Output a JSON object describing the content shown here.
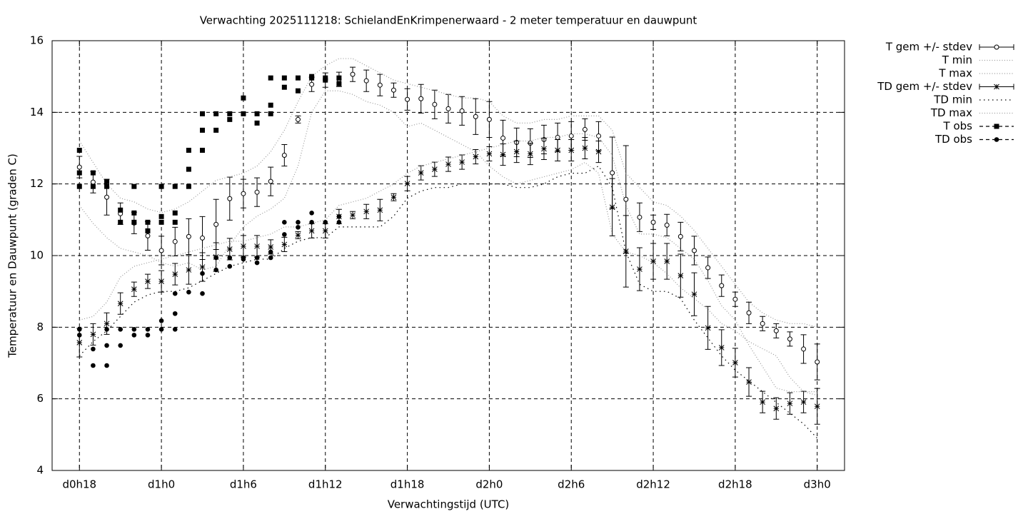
{
  "chart_data": {
    "type": "line",
    "title": "Verwachting 2025111218: SchielandEnKrimpenerwaard - 2 meter temperatuur en dauwpunt",
    "xlabel": "Verwachtingstijd (UTC)",
    "ylabel": "Temperatuur en Dauwpunt (graden C)",
    "xlim": [
      16,
      74
    ],
    "ylim": [
      4,
      16
    ],
    "xticks": [
      {
        "value": 18,
        "label": "d0h18"
      },
      {
        "value": 24,
        "label": "d1h0"
      },
      {
        "value": 30,
        "label": "d1h6"
      },
      {
        "value": 36,
        "label": "d1h12"
      },
      {
        "value": 42,
        "label": "d1h18"
      },
      {
        "value": 48,
        "label": "d2h0"
      },
      {
        "value": 54,
        "label": "d2h6"
      },
      {
        "value": 60,
        "label": "d2h12"
      },
      {
        "value": 66,
        "label": "d2h18"
      },
      {
        "value": 72,
        "label": "d3h0"
      }
    ],
    "yticks": [
      4,
      6,
      8,
      10,
      12,
      14,
      16
    ],
    "grid": true,
    "legend": "outside-right",
    "x": [
      18,
      19,
      20,
      21,
      22,
      23,
      24,
      25,
      26,
      27,
      28,
      29,
      30,
      31,
      32,
      33,
      34,
      35,
      36,
      37,
      38,
      39,
      40,
      41,
      42,
      43,
      44,
      45,
      46,
      47,
      48,
      49,
      50,
      51,
      52,
      53,
      54,
      55,
      56,
      57,
      58,
      59,
      60,
      61,
      62,
      63,
      64,
      65,
      66,
      67,
      68,
      69,
      70,
      71,
      72
    ],
    "series": [
      {
        "name": "T gem +/- stdev",
        "color": "#000000",
        "marker": "circle",
        "line": "none",
        "values": [
          12.47,
          12.05,
          11.63,
          11.17,
          10.91,
          10.55,
          10.14,
          10.39,
          10.53,
          10.49,
          10.87,
          11.59,
          11.73,
          11.77,
          12.07,
          12.8,
          13.8,
          14.78,
          14.9,
          14.92,
          15.06,
          14.88,
          14.76,
          14.62,
          14.36,
          14.38,
          14.22,
          14.1,
          14.04,
          13.88,
          13.8,
          13.28,
          13.16,
          13.14,
          13.24,
          13.3,
          13.34,
          13.52,
          13.34,
          12.31,
          11.57,
          11.07,
          10.93,
          10.85,
          10.53,
          10.14,
          9.66,
          9.16,
          8.78,
          8.4,
          8.1,
          7.9,
          7.67,
          7.39,
          7.03
        ],
        "errors": [
          0.3,
          0.3,
          0.5,
          0.3,
          0.3,
          0.4,
          0.4,
          0.4,
          0.5,
          0.6,
          0.7,
          0.6,
          0.4,
          0.4,
          0.4,
          0.3,
          0.1,
          0.2,
          0.2,
          0.2,
          0.2,
          0.3,
          0.3,
          0.2,
          0.3,
          0.4,
          0.4,
          0.4,
          0.4,
          0.5,
          0.5,
          0.5,
          0.4,
          0.4,
          0.4,
          0.4,
          0.4,
          0.3,
          0.4,
          1.0,
          1.5,
          0.4,
          0.2,
          0.3,
          0.4,
          0.4,
          0.3,
          0.3,
          0.2,
          0.3,
          0.2,
          0.2,
          0.2,
          0.4,
          0.5
        ]
      },
      {
        "name": "T min",
        "color": "#999999",
        "marker": "none",
        "line": "dotted",
        "values": [
          11.4,
          10.9,
          10.5,
          10.2,
          10.1,
          10.0,
          9.8,
          9.7,
          9.8,
          9.6,
          9.7,
          10.3,
          10.8,
          11.1,
          11.3,
          11.6,
          12.5,
          14.0,
          14.6,
          14.6,
          14.5,
          14.3,
          14.2,
          14.0,
          13.6,
          13.7,
          13.5,
          13.3,
          13.1,
          12.9,
          12.5,
          12.2,
          12.0,
          12.1,
          12.2,
          12.3,
          12.4,
          12.6,
          12.3,
          10.6,
          10.1,
          10.0,
          9.8,
          9.5,
          9.1,
          8.8,
          8.5,
          8.1,
          7.9,
          7.6,
          7.4,
          7.2,
          6.6,
          6.2,
          6.1
        ]
      },
      {
        "name": "T max",
        "color": "#999999",
        "marker": "none",
        "line": "dotted",
        "values": [
          13.2,
          12.6,
          12.0,
          11.6,
          11.5,
          11.3,
          11.2,
          11.3,
          11.5,
          11.8,
          12.1,
          12.2,
          12.3,
          12.5,
          12.9,
          13.5,
          14.3,
          15.0,
          15.3,
          15.5,
          15.5,
          15.3,
          15.1,
          14.9,
          14.8,
          14.7,
          14.6,
          14.5,
          14.4,
          14.4,
          14.3,
          13.9,
          13.7,
          13.7,
          13.8,
          13.8,
          13.9,
          13.9,
          13.9,
          13.5,
          12.3,
          11.9,
          11.5,
          11.4,
          11.1,
          10.7,
          10.2,
          9.7,
          9.2,
          8.7,
          8.4,
          8.2,
          8.1,
          8.1,
          8.0
        ]
      },
      {
        "name": "TD gem +/- stdev",
        "color": "#000000",
        "marker": "asterisk",
        "line": "none",
        "values": [
          7.57,
          7.8,
          8.1,
          8.66,
          9.06,
          9.28,
          9.28,
          9.48,
          9.6,
          9.68,
          9.96,
          10.18,
          10.26,
          10.26,
          10.24,
          10.31,
          10.57,
          10.69,
          10.69,
          11.09,
          11.13,
          11.23,
          11.27,
          11.63,
          12.01,
          12.31,
          12.41,
          12.55,
          12.61,
          12.76,
          12.84,
          12.82,
          12.9,
          12.84,
          12.98,
          12.94,
          12.94,
          13.0,
          12.9,
          11.35,
          10.12,
          9.62,
          9.84,
          9.84,
          9.44,
          8.92,
          7.98,
          7.43,
          7.01,
          6.47,
          5.91,
          5.73,
          5.87,
          5.91,
          5.79
        ],
        "errors": [
          0.4,
          0.3,
          0.3,
          0.3,
          0.2,
          0.2,
          0.3,
          0.3,
          0.4,
          0.4,
          0.4,
          0.3,
          0.3,
          0.3,
          0.2,
          0.2,
          0.1,
          0.2,
          0.2,
          0.2,
          0.1,
          0.2,
          0.3,
          0.1,
          0.2,
          0.2,
          0.2,
          0.2,
          0.2,
          0.2,
          0.2,
          0.3,
          0.3,
          0.3,
          0.3,
          0.3,
          0.3,
          0.3,
          0.3,
          0.8,
          1.0,
          0.6,
          0.5,
          0.5,
          0.6,
          0.6,
          0.6,
          0.5,
          0.4,
          0.4,
          0.3,
          0.3,
          0.3,
          0.3,
          0.5
        ]
      },
      {
        "name": "TD min",
        "color": "#000000",
        "marker": "none",
        "line": "sparse-dotted",
        "values": [
          7.2,
          7.6,
          7.9,
          8.3,
          8.7,
          8.9,
          9.0,
          9.0,
          9.1,
          9.3,
          9.5,
          9.7,
          9.8,
          9.9,
          9.9,
          10.2,
          10.4,
          10.5,
          10.5,
          10.8,
          10.8,
          10.8,
          10.8,
          11.1,
          11.6,
          11.8,
          11.9,
          11.9,
          12.0,
          12.0,
          12.0,
          12.0,
          11.9,
          11.9,
          12.0,
          12.2,
          12.3,
          12.3,
          12.5,
          11.9,
          10.1,
          9.2,
          9.0,
          9.0,
          8.8,
          8.2,
          7.7,
          7.2,
          6.8,
          6.5,
          6.2,
          5.9,
          5.6,
          5.3,
          4.9
        ]
      },
      {
        "name": "TD max",
        "color": "#999999",
        "marker": "none",
        "line": "dotted",
        "values": [
          8.2,
          8.3,
          8.7,
          9.4,
          9.7,
          9.8,
          9.9,
          10.0,
          10.1,
          10.2,
          10.3,
          10.4,
          10.4,
          10.5,
          10.6,
          10.8,
          10.8,
          10.9,
          11.0,
          11.4,
          11.5,
          11.6,
          11.8,
          12.0,
          12.3,
          12.5,
          12.6,
          12.7,
          12.8,
          12.9,
          13.0,
          13.1,
          13.2,
          13.2,
          13.3,
          13.3,
          13.4,
          13.4,
          13.3,
          12.8,
          11.4,
          10.6,
          10.6,
          10.5,
          10.2,
          9.9,
          9.3,
          8.6,
          8.2,
          7.5,
          6.9,
          6.3,
          6.2,
          6.2,
          6.2
        ]
      },
      {
        "name": "T obs",
        "color": "#000000",
        "marker": "square",
        "line": "none",
        "x": [
          18,
          18,
          18,
          19,
          19,
          20,
          20,
          21,
          21,
          22,
          22,
          22,
          23,
          23,
          24,
          24,
          24,
          25,
          25,
          25,
          26,
          26,
          26,
          27,
          27,
          27,
          28,
          28,
          29,
          29,
          30,
          30,
          31,
          31,
          32,
          32,
          32,
          33,
          33,
          34,
          34,
          35,
          35,
          36,
          36,
          37,
          37
        ],
        "values": [
          12.94,
          12.31,
          11.93,
          12.31,
          11.93,
          12.07,
          11.93,
          11.27,
          10.93,
          11.93,
          11.19,
          10.93,
          10.93,
          10.69,
          11.93,
          11.09,
          10.93,
          11.93,
          11.19,
          10.93,
          12.94,
          12.41,
          11.93,
          13.96,
          13.5,
          12.94,
          13.96,
          13.5,
          13.96,
          13.8,
          14.4,
          13.96,
          13.96,
          13.7,
          14.96,
          14.2,
          13.96,
          14.96,
          14.7,
          14.96,
          14.6,
          15.0,
          14.96,
          14.96,
          14.9,
          14.96,
          14.8
        ]
      },
      {
        "name": "TD obs",
        "color": "#000000",
        "marker": "dot",
        "line": "none",
        "x": [
          18,
          18,
          19,
          19,
          20,
          20,
          20,
          21,
          21,
          22,
          22,
          23,
          23,
          24,
          24,
          25,
          25,
          25,
          26,
          27,
          27,
          28,
          28,
          29,
          29,
          30,
          30,
          31,
          31,
          32,
          32,
          33,
          33,
          34,
          34,
          35,
          35,
          36,
          37,
          37
        ],
        "values": [
          7.94,
          7.78,
          7.39,
          6.93,
          7.94,
          7.49,
          6.93,
          7.94,
          7.49,
          7.94,
          7.78,
          7.94,
          7.78,
          8.18,
          7.94,
          8.94,
          8.38,
          7.94,
          8.98,
          9.5,
          8.94,
          9.94,
          9.6,
          9.94,
          9.7,
          9.94,
          9.9,
          9.94,
          9.8,
          10.1,
          9.94,
          10.93,
          10.59,
          10.93,
          10.79,
          11.19,
          10.93,
          10.93,
          11.09,
          10.93
        ]
      }
    ]
  }
}
